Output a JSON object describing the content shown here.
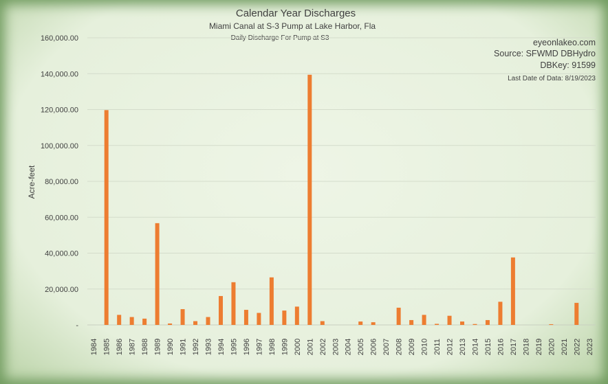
{
  "chart_data": {
    "type": "bar",
    "title": "Calendar Year Discharges",
    "subtitle": "Miami Canal at S-3 Pump at Lake Harbor, Fla",
    "subtitle2": "Daily Discharge For Pump at S3",
    "ylabel": "Acre-feet",
    "xlabel": "",
    "ylim": [
      0,
      160000
    ],
    "yticks": [
      0,
      20000,
      40000,
      60000,
      80000,
      100000,
      120000,
      140000,
      160000
    ],
    "ytick_labels": [
      "-",
      "20,000.00",
      "40,000.00",
      "60,000.00",
      "80,000.00",
      "100,000.00",
      "120,000.00",
      "140,000.00",
      "160,000.00"
    ],
    "grid": true,
    "bar_color": "#ed7d31",
    "categories": [
      "1984",
      "1985",
      "1986",
      "1987",
      "1988",
      "1989",
      "1990",
      "1991",
      "1992",
      "1993",
      "1994",
      "1995",
      "1996",
      "1997",
      "1998",
      "1999",
      "2000",
      "2001",
      "2002",
      "2003",
      "2004",
      "2005",
      "2006",
      "2007",
      "2008",
      "2009",
      "2010",
      "2011",
      "2012",
      "2013",
      "2014",
      "2015",
      "2016",
      "2017",
      "2018",
      "2019",
      "2020",
      "2021",
      "2022",
      "2023"
    ],
    "values": [
      0,
      119700,
      5600,
      4400,
      3500,
      56700,
      800,
      8800,
      2100,
      4400,
      16100,
      23800,
      8400,
      6700,
      26500,
      8000,
      10200,
      139400,
      2100,
      0,
      0,
      1900,
      1500,
      0,
      9600,
      2700,
      5600,
      600,
      5100,
      1900,
      500,
      2700,
      12900,
      37600,
      0,
      0,
      400,
      0,
      12300,
      0
    ],
    "annotations": {
      "site": "eyeonlakeo.com",
      "source": "Source: SFWMD DBHydro",
      "dbkey": "DBKey: 91599",
      "last_date": "Last Date of Data: 8/19/2023"
    }
  }
}
